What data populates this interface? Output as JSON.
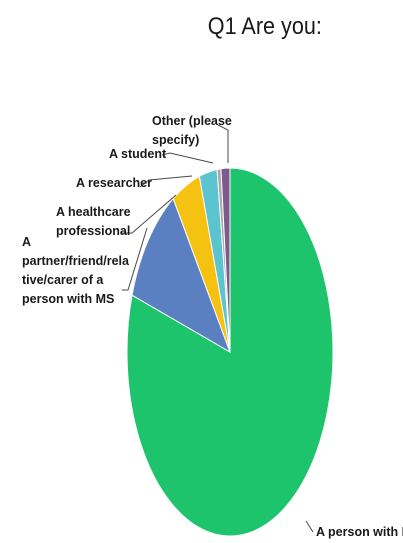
{
  "chart_data": {
    "type": "pie",
    "title": "Q1 Are you:",
    "categories": [
      "A person with MS",
      "A partner/friend/relative/carer of a person with MS",
      "A healthcare professional",
      "A researcher",
      "A student",
      "Other (please specify)"
    ],
    "values": [
      80.0,
      10.7,
      4.5,
      2.8,
      0.6,
      1.4
    ],
    "unit": "percent of respondents (estimated)",
    "label_lines": [
      [
        "A person with MS"
      ],
      [
        "A",
        "partner/friend/rela",
        "tive/carer of a",
        "person with MS"
      ],
      [
        "A healthcare",
        "professional"
      ],
      [
        "A researcher"
      ],
      [
        "A student"
      ],
      [
        "Other (please",
        "specify)"
      ]
    ],
    "colors": [
      "#1dc46b",
      "#5b80c2",
      "#f5c211",
      "#5bc4cf",
      "#a8a8a8",
      "#7d5b8c"
    ],
    "legend": "none",
    "start": "12 o'clock",
    "direction": "clockwise"
  }
}
